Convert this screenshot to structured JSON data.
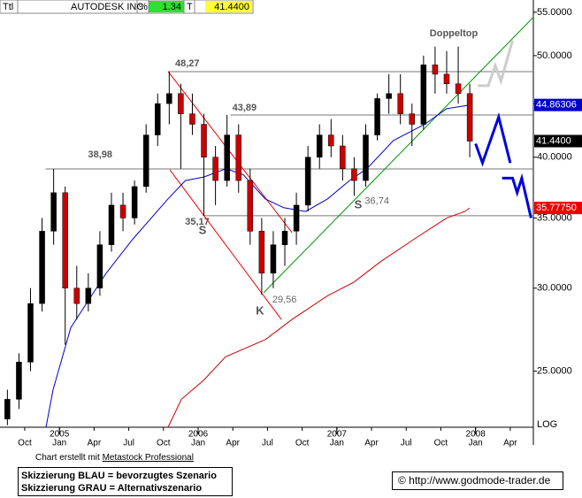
{
  "header": {
    "fields": [
      "Ttl",
      "AUTODESK INC",
      "%",
      "1.34",
      "T",
      "41.4400"
    ]
  },
  "chart_data": {
    "type": "ohlc",
    "log_scale": true,
    "series": [
      {
        "name": "AUTODESK INC",
        "up_color": "#000000",
        "down_color": "#cc0000",
        "x": [
          -1.5,
          -0.5,
          0.5,
          1.5,
          2.5,
          3.5,
          4.5,
          5.5,
          6.5,
          7.5,
          8.5,
          9.5,
          10.5,
          11.5,
          12.5,
          13.5,
          14.5,
          15.5,
          16.5,
          17.5,
          18.5,
          19.5,
          20.5,
          21.5,
          22.5,
          23.5,
          24.5,
          25.5,
          26.5,
          27.5,
          28.5,
          29.5,
          30.5,
          31.5,
          32.5,
          33.5,
          34.5,
          35.5,
          36.5,
          37.5,
          38.5
        ],
        "open": [
          22.5,
          23.5,
          25.5,
          29,
          34,
          37,
          30,
          29,
          30,
          33,
          36,
          35,
          37.5,
          42,
          45,
          46,
          44,
          43,
          40,
          38,
          42,
          38,
          34,
          31,
          33,
          34,
          36,
          40,
          42,
          41,
          39,
          38,
          42,
          45.5,
          46,
          44,
          43,
          49,
          48,
          47,
          46
        ],
        "high": [
          24,
          26,
          30,
          35,
          38.98,
          37.5,
          31.5,
          31,
          34,
          37,
          37,
          38,
          43,
          46,
          48.27,
          47,
          46,
          44,
          41,
          43.89,
          43,
          39,
          35,
          34,
          35,
          37,
          41,
          43,
          43.5,
          42,
          40,
          43,
          46,
          48,
          48,
          45,
          50,
          51,
          50.5,
          51,
          47
        ],
        "low": [
          22.2,
          23,
          25,
          28.5,
          33,
          26.5,
          28,
          28.5,
          29.5,
          32.5,
          34,
          34.5,
          37,
          41,
          43,
          39,
          42,
          35.17,
          36,
          37.5,
          37,
          33,
          29.56,
          30,
          31.5,
          33,
          35.5,
          39,
          40,
          38,
          36.74,
          37.5,
          41.5,
          44,
          43,
          41,
          42.5,
          46,
          46,
          45,
          40
        ],
        "close": [
          23.5,
          25.5,
          29,
          34,
          37,
          30,
          29,
          30,
          33,
          36,
          35,
          37.5,
          42,
          45,
          46,
          44,
          43,
          40,
          38,
          42,
          38,
          34,
          31,
          33,
          34,
          36,
          40,
          42,
          41,
          39,
          38,
          42,
          45.5,
          46,
          44,
          43,
          49,
          48,
          47,
          46,
          41.44
        ]
      }
    ],
    "moving_averages": [
      {
        "color": "#0000cc",
        "x": [
          1.84,
          2.45,
          3.98,
          5.51,
          7.04,
          9.34,
          12.4,
          13.9,
          15.5,
          17.4,
          18.9,
          20.8,
          22.4,
          24.3,
          26.2,
          28.1,
          29.6,
          31.9,
          34.6,
          36.5,
          38.5
        ],
        "values": [
          22.1,
          24,
          27.5,
          29.2,
          31,
          33.4,
          36.5,
          38,
          38.3,
          39,
          38.5,
          36.5,
          35.8,
          35.5,
          36.5,
          38,
          39,
          41.5,
          43,
          44.5,
          44.86
        ]
      },
      {
        "color": "#cc0000",
        "x": [
          12.4,
          13.55,
          15.47,
          17.38,
          20.83,
          23.12,
          26.19,
          28.48,
          30.78,
          33.84,
          36.52,
          38.06,
          38.5
        ],
        "values": [
          22.1,
          23.5,
          24.5,
          25.8,
          26.8,
          28,
          29.5,
          30.4,
          31.8,
          33.5,
          35,
          35.5,
          35.78
        ]
      }
    ],
    "trendlines": [
      {
        "color": "#009900",
        "x": [
          20.67,
          44.0
        ],
        "values": [
          29.7,
          54.4
        ]
      },
      {
        "color": "#ee0000",
        "x": [
          12.4,
          23.12
        ],
        "values": [
          48.3,
          33.9
        ]
      },
      {
        "color": "#ee0000",
        "x": [
          12.56,
          22.2
        ],
        "values": [
          38.9,
          28.0
        ]
      }
    ],
    "scenarios": [
      {
        "color": "#0000dd",
        "x": [
          39.0,
          39.6,
          41.0,
          42.0
        ],
        "values": [
          41.2,
          39.5,
          43.7,
          39.5
        ]
      },
      {
        "color": "#0000dd",
        "x": [
          41.3,
          42.2,
          42.6,
          43.0,
          43.8
        ],
        "values": [
          38.2,
          38.2,
          37.0,
          38.2,
          35.0
        ]
      },
      {
        "color": "#cccccc",
        "x": [
          39.2,
          40.1,
          40.7,
          41.2,
          42.2
        ],
        "values": [
          46.8,
          46.8,
          48.9,
          47.3,
          51.7
        ]
      }
    ],
    "levels": [
      {
        "value": 48.27,
        "label": "48,27",
        "from": 12.4
      },
      {
        "value": 43.89,
        "label": "43,89",
        "from": 17.8
      },
      {
        "value": 38.98,
        "label": "38,98",
        "from": 1.8
      },
      {
        "value": 35.17,
        "label": "35,17",
        "from": 15.4
      }
    ],
    "lows": [
      {
        "value": 36.74,
        "label": "36,74",
        "x": 28.5
      },
      {
        "value": 29.56,
        "label": "29,56",
        "x": 20.5
      }
    ],
    "annotations": [
      "Doppeltop",
      "S",
      "S",
      "K"
    ],
    "price_tags": [
      {
        "value": 44.86306,
        "label": "44.86306",
        "color": "#0000cc"
      },
      {
        "value": 41.44,
        "label": "41.4400",
        "color": "#000000"
      },
      {
        "value": 35.7775,
        "label": "35.77750",
        "color": "#ee0000"
      }
    ],
    "ylim": [
      22.1,
      56.5
    ],
    "xlim": [
      -2.14,
      44.0
    ],
    "yticks": [
      {
        "value": 55,
        "label": "55.0000"
      },
      {
        "value": 50,
        "label": "50.0000"
      },
      {
        "value": 45,
        "label": "45.0000"
      },
      {
        "value": 40,
        "label": "40.0000"
      },
      {
        "value": 35,
        "label": "35.0000"
      },
      {
        "value": 30,
        "label": "30.0000"
      },
      {
        "value": 25,
        "label": "25.0000"
      }
    ],
    "scale_label": "LOG",
    "xticks": [
      {
        "value": 0,
        "label": "Oct"
      },
      {
        "value": 3,
        "label": "Jan"
      },
      {
        "value": 6,
        "label": "Apr"
      },
      {
        "value": 9,
        "label": "Jul"
      },
      {
        "value": 12,
        "label": "Oct"
      },
      {
        "value": 15,
        "label": "Jan"
      },
      {
        "value": 18,
        "label": "Apr"
      },
      {
        "value": 21,
        "label": "Jul"
      },
      {
        "value": 24,
        "label": "Oct"
      },
      {
        "value": 27,
        "label": "Jan"
      },
      {
        "value": 30,
        "label": "Apr"
      },
      {
        "value": 33,
        "label": "Jul"
      },
      {
        "value": 36,
        "label": "Oct"
      },
      {
        "value": 39,
        "label": "Jan"
      },
      {
        "value": 42,
        "label": "Apr"
      }
    ],
    "years": [
      {
        "value": 3,
        "label": "2005"
      },
      {
        "value": 15,
        "label": "2006"
      },
      {
        "value": 27,
        "label": "2007"
      },
      {
        "value": 39,
        "label": "2008"
      }
    ]
  },
  "footer": {
    "credit_prefix": "Chart erstellt mit",
    "credit_link": "Metastock Professional",
    "legend": [
      "Skizzierung BLAU = bevorzugtes Szenario",
      "Skizzierung GRAU = Alternativszenario"
    ],
    "url": "© http://www.godmode-trader.de"
  }
}
